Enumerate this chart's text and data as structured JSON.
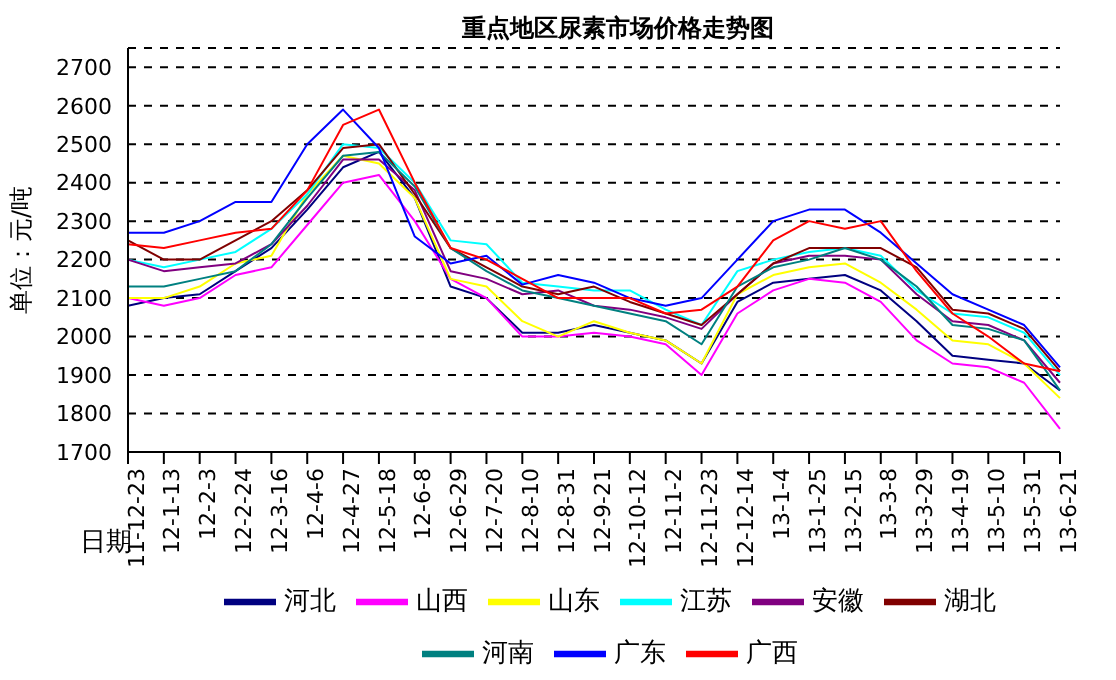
{
  "chart_data": {
    "type": "line",
    "title": "重点地区尿素市场价格走势图",
    "xlabel": "日期",
    "ylabel": "单位：元/吨",
    "categories": [
      "11-12-23",
      "12-1-13",
      "12-2-3",
      "12-2-24",
      "12-3-16",
      "12-4-6",
      "12-4-27",
      "12-5-18",
      "12-6-8",
      "12-6-29",
      "12-7-20",
      "12-8-10",
      "12-8-31",
      "12-9-21",
      "12-10-12",
      "12-11-2",
      "12-11-23",
      "12-12-14",
      "13-1-4",
      "13-1-25",
      "13-2-15",
      "13-3-8",
      "13-3-29",
      "13-4-19",
      "13-5-10",
      "13-5-31",
      "13-6-21"
    ],
    "series": [
      {
        "name": "河北",
        "color": "#000080",
        "values": [
          2080,
          2100,
          2110,
          2170,
          2230,
          2330,
          2440,
          2480,
          2360,
          2130,
          2100,
          2010,
          2010,
          2030,
          2010,
          1990,
          1930,
          2090,
          2140,
          2150,
          2160,
          2120,
          2040,
          1950,
          1940,
          1930,
          1860
        ]
      },
      {
        "name": "山西",
        "color": "#ff00ff",
        "values": [
          2100,
          2080,
          2100,
          2160,
          2180,
          2290,
          2400,
          2420,
          2300,
          2150,
          2100,
          2000,
          2000,
          2010,
          2000,
          1980,
          1900,
          2060,
          2120,
          2150,
          2140,
          2090,
          1990,
          1930,
          1920,
          1880,
          1760
        ]
      },
      {
        "name": "山东",
        "color": "#ffff00",
        "values": [
          2100,
          2100,
          2130,
          2190,
          2210,
          2370,
          2470,
          2450,
          2360,
          2150,
          2130,
          2040,
          2000,
          2040,
          2010,
          1990,
          1930,
          2110,
          2160,
          2180,
          2190,
          2140,
          2070,
          1990,
          1980,
          1930,
          1840
        ]
      },
      {
        "name": "江苏",
        "color": "#00ffff",
        "values": [
          2200,
          2180,
          2200,
          2220,
          2280,
          2370,
          2500,
          2490,
          2400,
          2250,
          2240,
          2140,
          2130,
          2120,
          2120,
          2070,
          2030,
          2170,
          2200,
          2220,
          2230,
          2210,
          2120,
          2060,
          2050,
          2010,
          1900
        ]
      },
      {
        "name": "安徽",
        "color": "#800080",
        "values": [
          2200,
          2170,
          2180,
          2190,
          2240,
          2340,
          2460,
          2460,
          2380,
          2170,
          2150,
          2110,
          2120,
          2080,
          2070,
          2050,
          2020,
          2110,
          2190,
          2210,
          2210,
          2200,
          2110,
          2040,
          2030,
          1990,
          1880
        ]
      },
      {
        "name": "湖北",
        "color": "#800000",
        "values": [
          2250,
          2200,
          2200,
          2250,
          2300,
          2380,
          2490,
          2500,
          2370,
          2230,
          2180,
          2130,
          2110,
          2130,
          2090,
          2060,
          2030,
          2110,
          2190,
          2230,
          2230,
          2230,
          2180,
          2070,
          2060,
          2020,
          1910
        ]
      },
      {
        "name": "河南",
        "color": "#008080",
        "values": [
          2130,
          2130,
          2150,
          2170,
          2240,
          2360,
          2470,
          2480,
          2390,
          2230,
          2170,
          2120,
          2100,
          2080,
          2060,
          2040,
          1980,
          2130,
          2180,
          2200,
          2230,
          2200,
          2130,
          2030,
          2020,
          1990,
          1860
        ]
      },
      {
        "name": "广东",
        "color": "#0000ff",
        "values": [
          2270,
          2270,
          2300,
          2350,
          2350,
          2500,
          2590,
          2490,
          2260,
          2190,
          2210,
          2135,
          2160,
          2140,
          2100,
          2080,
          2100,
          2200,
          2300,
          2330,
          2330,
          2270,
          2190,
          2110,
          2070,
          2030,
          1920
        ]
      },
      {
        "name": "广西",
        "color": "#ff0000",
        "values": [
          2240,
          2230,
          2250,
          2270,
          2280,
          2380,
          2550,
          2590,
          2400,
          2230,
          2200,
          2150,
          2100,
          2100,
          2100,
          2060,
          2070,
          2130,
          2250,
          2300,
          2280,
          2300,
          2170,
          2060,
          2000,
          1930,
          1910
        ]
      }
    ],
    "ylim": [
      1700,
      2750
    ],
    "yticks": [
      1700,
      1800,
      1900,
      2000,
      2100,
      2200,
      2300,
      2400,
      2500,
      2600,
      2700
    ],
    "grid": "y",
    "legend": "bottom",
    "marker": "none",
    "line_style": "solid"
  }
}
